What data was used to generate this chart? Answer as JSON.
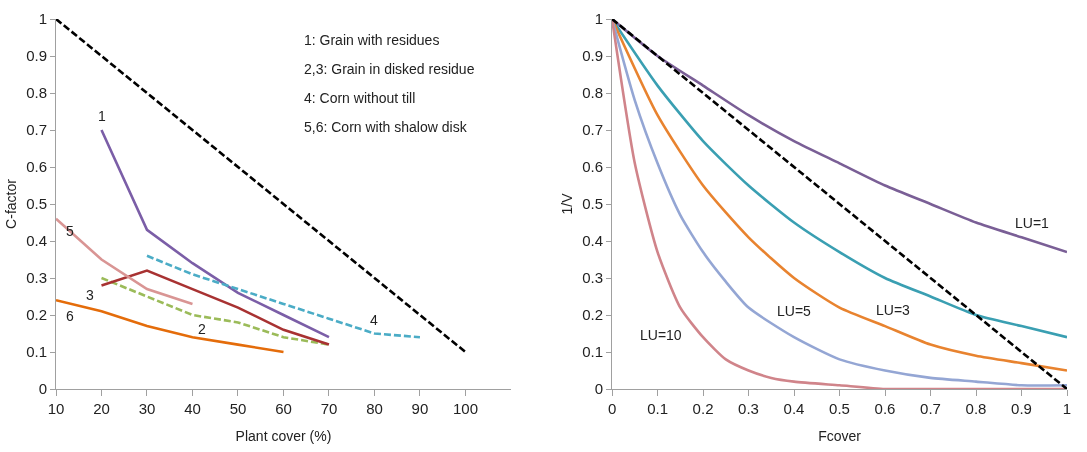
{
  "chart_data": [
    {
      "type": "line",
      "xlabel": "Plant cover (%)",
      "ylabel": "C-factor",
      "xlim": [
        10,
        110
      ],
      "xticks": [
        10,
        20,
        30,
        40,
        50,
        60,
        70,
        80,
        90,
        100
      ],
      "ylim": [
        0,
        1
      ],
      "yticks": [
        0,
        0.1,
        0.2,
        0.3,
        0.4,
        0.5,
        0.6,
        0.7,
        0.8,
        0.9,
        1
      ],
      "marker": "none",
      "annotations": [
        "1: Grain with residues",
        "2,3: Grain in disked residue",
        "4: Corn without till",
        "5,6: Corn with shalow disk"
      ],
      "series": [
        {
          "x": [
            10,
            100
          ],
          "values": [
            1,
            0.1
          ],
          "color": "#000000",
          "line_style": "dashed"
        },
        {
          "name": "1",
          "x": [
            20,
            30,
            40,
            50,
            60,
            70
          ],
          "values": [
            0.7,
            0.43,
            0.34,
            0.26,
            0.2,
            0.14
          ],
          "color": "#7b5ea7",
          "line_style": "solid"
        },
        {
          "name": "2",
          "x": [
            20,
            30,
            40,
            50,
            60,
            70
          ],
          "values": [
            0.3,
            0.25,
            0.2,
            0.18,
            0.14,
            0.12
          ],
          "color": "#9bbb59",
          "line_style": "dashed"
        },
        {
          "name": "3",
          "x": [
            20,
            30,
            40,
            50,
            60,
            70
          ],
          "values": [
            0.28,
            0.32,
            0.27,
            0.22,
            0.16,
            0.12
          ],
          "color": "#a83232",
          "line_style": "solid"
        },
        {
          "name": "4",
          "x": [
            30,
            40,
            50,
            60,
            70,
            80,
            90
          ],
          "values": [
            0.36,
            0.31,
            0.27,
            0.23,
            0.19,
            0.15,
            0.14
          ],
          "color": "#4bacc6",
          "line_style": "dashed"
        },
        {
          "name": "5",
          "x": [
            10,
            20,
            30,
            40
          ],
          "values": [
            0.46,
            0.35,
            0.27,
            0.23
          ],
          "color": "#d99594",
          "line_style": "solid"
        },
        {
          "name": "6",
          "x": [
            10,
            20,
            30,
            40,
            50,
            60
          ],
          "values": [
            0.24,
            0.21,
            0.17,
            0.14,
            0.12,
            0.1
          ],
          "color": "#e46c0a",
          "line_style": "solid"
        }
      ]
    },
    {
      "type": "line",
      "xlabel": "Fcover",
      "ylabel": "1/V",
      "xlim": [
        0,
        1
      ],
      "xticks": [
        0,
        0.1,
        0.2,
        0.3,
        0.4,
        0.5,
        0.6,
        0.7,
        0.8,
        0.9,
        1
      ],
      "ylim": [
        0,
        1
      ],
      "yticks": [
        0,
        0.1,
        0.2,
        0.3,
        0.4,
        0.5,
        0.6,
        0.7,
        0.8,
        0.9,
        1
      ],
      "marker": "none",
      "series": [
        {
          "name": "LU=1",
          "x": [
            0,
            0.1,
            0.2,
            0.3,
            0.4,
            0.5,
            0.6,
            0.7,
            0.8,
            0.9,
            1
          ],
          "values": [
            1,
            0.9,
            0.82,
            0.74,
            0.67,
            0.61,
            0.55,
            0.5,
            0.45,
            0.41,
            0.37
          ],
          "color": "#7a5f96",
          "line_style": "solid"
        },
        {
          "x": [
            0,
            0.1,
            0.2,
            0.3,
            0.4,
            0.5,
            0.6,
            0.7,
            0.8,
            0.9,
            1
          ],
          "values": [
            1,
            0.82,
            0.67,
            0.55,
            0.45,
            0.37,
            0.3,
            0.25,
            0.2,
            0.17,
            0.14
          ],
          "color": "#3a9fb2",
          "line_style": "solid"
        },
        {
          "name": "LU=3",
          "x": [
            0,
            0.1,
            0.2,
            0.3,
            0.4,
            0.5,
            0.6,
            0.7,
            0.8,
            0.9,
            1
          ],
          "values": [
            1,
            0.74,
            0.55,
            0.41,
            0.3,
            0.22,
            0.17,
            0.12,
            0.09,
            0.07,
            0.05
          ],
          "color": "#e8832f",
          "line_style": "solid"
        },
        {
          "name": "LU=5",
          "x": [
            0,
            0.05,
            0.1,
            0.15,
            0.2,
            0.25,
            0.3,
            0.4,
            0.5,
            0.6,
            0.7,
            0.8,
            0.9,
            1
          ],
          "values": [
            1,
            0.78,
            0.61,
            0.47,
            0.37,
            0.29,
            0.22,
            0.14,
            0.08,
            0.05,
            0.03,
            0.02,
            0.01,
            0.01
          ],
          "color": "#94a6d4",
          "line_style": "solid"
        },
        {
          "name": "LU=10",
          "x": [
            0,
            0.05,
            0.1,
            0.15,
            0.2,
            0.25,
            0.3,
            0.35,
            0.4,
            0.5,
            0.6,
            0.7,
            0.8,
            0.9,
            1
          ],
          "values": [
            1,
            0.61,
            0.37,
            0.22,
            0.14,
            0.08,
            0.05,
            0.03,
            0.02,
            0.01,
            0,
            0,
            0,
            0,
            0
          ],
          "color": "#d0848a",
          "line_style": "solid"
        },
        {
          "x": [
            0,
            1
          ],
          "values": [
            1,
            0
          ],
          "color": "#000000",
          "line_style": "dashed"
        }
      ]
    }
  ]
}
